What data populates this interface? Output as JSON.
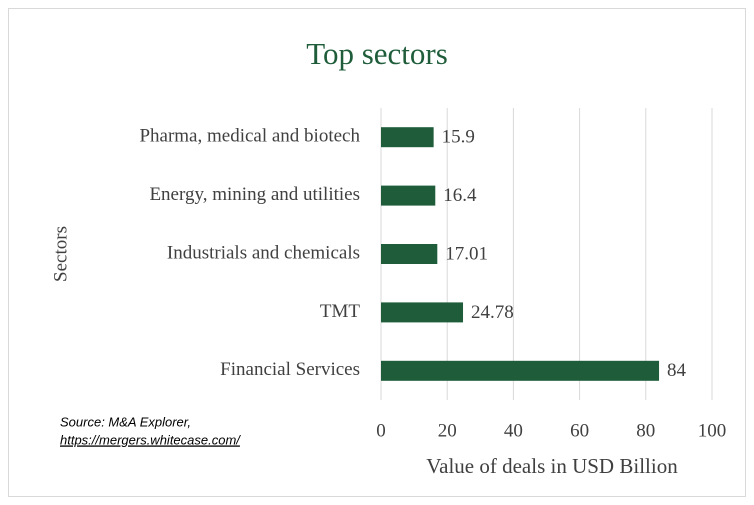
{
  "chart_data": {
    "type": "bar",
    "orientation": "horizontal",
    "title": "Top sectors",
    "categories": [
      "Pharma, medical and biotech",
      "Energy, mining and utilities",
      "Industrials and chemicals",
      "TMT",
      "Financial Services"
    ],
    "values": [
      15.9,
      16.4,
      17.01,
      24.78,
      84
    ],
    "color": "#1e5c3a",
    "xlim": [
      0,
      100
    ],
    "xticks": [
      0,
      20,
      40,
      60,
      80,
      100
    ],
    "grid": true,
    "x_label": "Value of deals in USD Billion",
    "y_label": "Sectors",
    "source": "Source: M&A Explorer,",
    "source_url": "https://mergers.whitecase.com/"
  }
}
